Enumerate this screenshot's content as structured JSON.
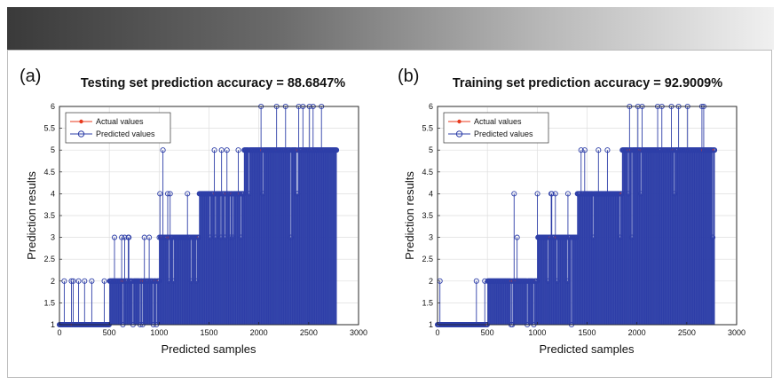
{
  "chart_data": [
    {
      "type": "stem",
      "panel_label": "(a)",
      "title": "Testing set prediction accuracy = 88.6847%",
      "xlabel": "Predicted samples",
      "ylabel": "Prediction results",
      "xlim": [
        0,
        3000
      ],
      "ylim": [
        1,
        6
      ],
      "xticks": [
        "0",
        "500",
        "1000",
        "1500",
        "2000",
        "2500",
        "3000"
      ],
      "yticks": [
        "1",
        "1.5",
        "2",
        "2.5",
        "3",
        "3.5",
        "4",
        "4.5",
        "5",
        "5.5",
        "6"
      ],
      "legend_location": "top-left",
      "n_samples": 2780,
      "series": [
        {
          "name": "Actual values",
          "color": "#e83a1e",
          "marker": "dot"
        },
        {
          "name": "Predicted values",
          "color": "#2e3fa8",
          "marker": "circle"
        }
      ],
      "class_boundaries": [
        500,
        1000,
        1400,
        1850,
        2780
      ],
      "grid": true
    },
    {
      "type": "stem",
      "panel_label": "(b)",
      "title": "Training set prediction accuracy = 92.9009%",
      "xlabel": "Predicted samples",
      "ylabel": "Prediction results",
      "xlim": [
        0,
        3000
      ],
      "ylim": [
        1,
        6
      ],
      "xticks": [
        "0",
        "500",
        "1000",
        "1500",
        "2000",
        "2500",
        "3000"
      ],
      "yticks": [
        "1",
        "1.5",
        "2",
        "2.5",
        "3",
        "3.5",
        "4",
        "4.5",
        "5",
        "5.5",
        "6"
      ],
      "legend_location": "top-left",
      "n_samples": 2780,
      "series": [
        {
          "name": "Actual values",
          "color": "#e83a1e",
          "marker": "dot"
        },
        {
          "name": "Predicted values",
          "color": "#2e3fa8",
          "marker": "circle"
        }
      ],
      "class_boundaries": [
        500,
        1000,
        1400,
        1850,
        2780
      ],
      "grid": true
    }
  ]
}
